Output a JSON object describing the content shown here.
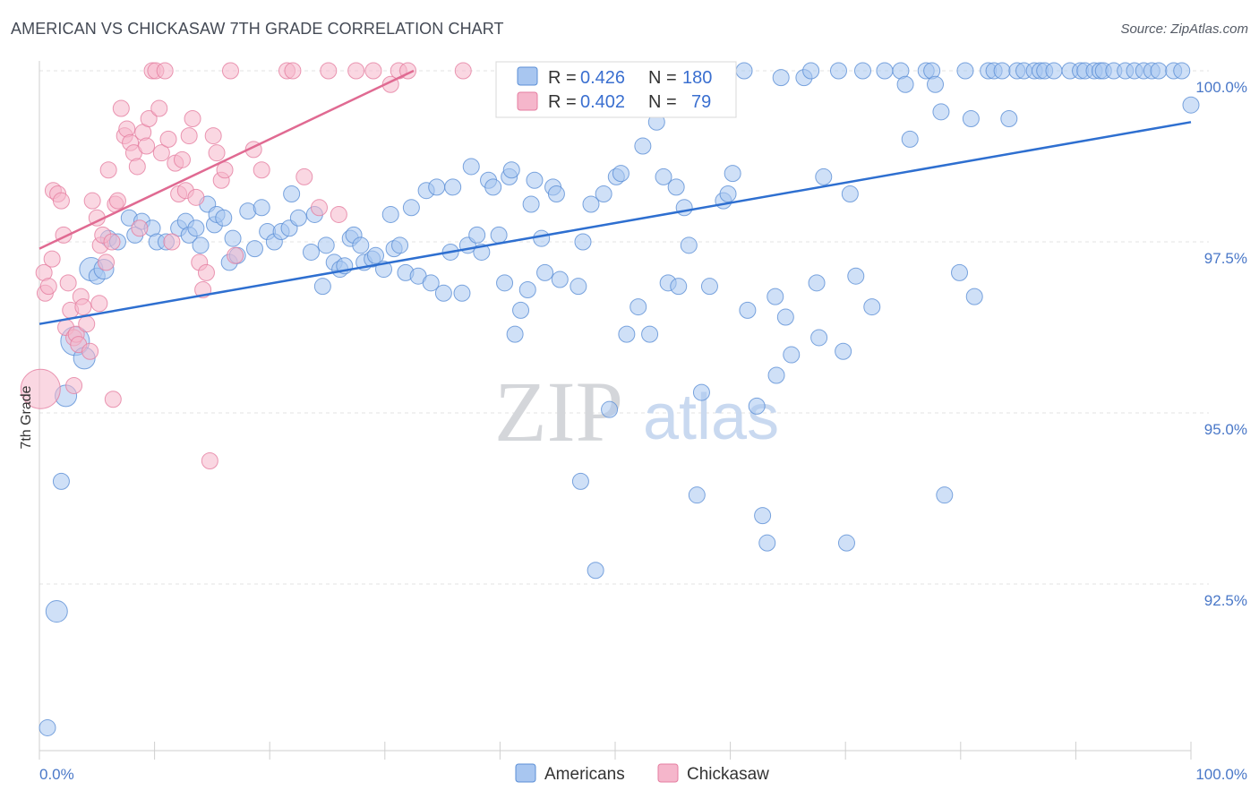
{
  "title": "AMERICAN VS CHICKASAW 7TH GRADE CORRELATION CHART",
  "source": "Source: ZipAtlas.com",
  "watermark": {
    "zip": "ZIP",
    "atlas": "atlas"
  },
  "colors": {
    "americans": "#5b8fd6",
    "americans_fill": "#a8c6f0",
    "chickasaw": "#e57ea0",
    "chickasaw_fill": "#f5b6cb",
    "blue_line": "#2e6fd0",
    "pink_line": "#e06a92",
    "tick_label": "#4a78c8"
  },
  "legend": {
    "rows": [
      {
        "r_label": "R =",
        "r_value": "0.426",
        "n_label": "N =",
        "n_value": "180"
      },
      {
        "r_label": "R =",
        "r_value": "0.402",
        "n_label": "N =",
        "n_value": "79"
      }
    ]
  },
  "bottom_legend": [
    "Americans",
    "Chickasaw"
  ],
  "chart_data": {
    "type": "scatter",
    "xlabel": "",
    "ylabel": "7th Grade",
    "xlim": [
      0,
      100
    ],
    "ylim": [
      90.2,
      100.2
    ],
    "x_tick_labels": [
      "0.0%",
      "100.0%"
    ],
    "y_ticks": [
      92.5,
      95.0,
      97.5,
      100.0
    ],
    "y_tick_labels": [
      "92.5%",
      "95.0%",
      "97.5%",
      "100.0%"
    ],
    "grid": true,
    "legend_position": "top-center",
    "series": [
      {
        "name": "Americans",
        "trend": {
          "x": [
            0,
            100
          ],
          "y": [
            96.3,
            99.25
          ]
        },
        "points": [
          [
            0.7,
            90.4
          ],
          [
            1.5,
            92.1
          ],
          [
            1.9,
            94.0
          ],
          [
            2.3,
            95.25
          ],
          [
            3.1,
            96.05
          ],
          [
            3.9,
            95.8
          ],
          [
            4.5,
            97.1
          ],
          [
            5.0,
            97.0
          ],
          [
            5.6,
            97.1
          ],
          [
            6.0,
            97.55
          ],
          [
            6.8,
            97.5
          ],
          [
            7.8,
            97.85
          ],
          [
            8.3,
            97.6
          ],
          [
            8.9,
            97.8
          ],
          [
            9.8,
            97.7
          ],
          [
            10.2,
            97.5
          ],
          [
            11.0,
            97.5
          ],
          [
            12.1,
            97.7
          ],
          [
            12.7,
            97.8
          ],
          [
            13.0,
            97.6
          ],
          [
            13.6,
            97.7
          ],
          [
            14.0,
            97.45
          ],
          [
            14.6,
            98.05
          ],
          [
            15.2,
            97.75
          ],
          [
            15.4,
            97.9
          ],
          [
            16.0,
            97.85
          ],
          [
            16.5,
            97.2
          ],
          [
            16.8,
            97.55
          ],
          [
            17.2,
            97.3
          ],
          [
            18.1,
            97.95
          ],
          [
            18.7,
            97.4
          ],
          [
            19.3,
            98.0
          ],
          [
            19.8,
            97.65
          ],
          [
            20.4,
            97.5
          ],
          [
            21.0,
            97.65
          ],
          [
            21.7,
            97.7
          ],
          [
            21.9,
            98.2
          ],
          [
            22.5,
            97.85
          ],
          [
            23.6,
            97.35
          ],
          [
            23.9,
            97.9
          ],
          [
            24.6,
            96.85
          ],
          [
            24.9,
            97.45
          ],
          [
            25.6,
            97.2
          ],
          [
            26.1,
            97.1
          ],
          [
            26.5,
            97.15
          ],
          [
            27.0,
            97.55
          ],
          [
            27.3,
            97.6
          ],
          [
            27.9,
            97.45
          ],
          [
            28.2,
            97.2
          ],
          [
            28.9,
            97.25
          ],
          [
            29.2,
            97.3
          ],
          [
            29.9,
            97.1
          ],
          [
            30.5,
            97.9
          ],
          [
            30.8,
            97.4
          ],
          [
            31.3,
            97.45
          ],
          [
            31.8,
            97.05
          ],
          [
            32.3,
            98.0
          ],
          [
            32.9,
            97.0
          ],
          [
            33.6,
            98.25
          ],
          [
            34.0,
            96.9
          ],
          [
            34.5,
            98.3
          ],
          [
            35.1,
            96.75
          ],
          [
            35.7,
            97.35
          ],
          [
            35.9,
            98.3
          ],
          [
            36.7,
            96.75
          ],
          [
            37.2,
            97.45
          ],
          [
            37.5,
            98.6
          ],
          [
            38.0,
            97.6
          ],
          [
            38.4,
            97.35
          ],
          [
            39.0,
            98.4
          ],
          [
            39.4,
            98.3
          ],
          [
            39.9,
            97.6
          ],
          [
            40.4,
            96.9
          ],
          [
            40.8,
            98.45
          ],
          [
            41.0,
            98.55
          ],
          [
            41.3,
            96.15
          ],
          [
            41.8,
            96.5
          ],
          [
            42.4,
            96.8
          ],
          [
            42.7,
            98.05
          ],
          [
            43.0,
            98.4
          ],
          [
            43.6,
            97.55
          ],
          [
            43.9,
            97.05
          ],
          [
            44.6,
            98.3
          ],
          [
            44.9,
            98.2
          ],
          [
            45.2,
            96.95
          ],
          [
            46.1,
            99.7
          ],
          [
            46.8,
            96.85
          ],
          [
            47.2,
            97.5
          ],
          [
            47.9,
            98.05
          ],
          [
            48.3,
            92.7
          ],
          [
            49.0,
            98.2
          ],
          [
            49.5,
            95.05
          ],
          [
            50.1,
            98.45
          ],
          [
            50.5,
            98.5
          ],
          [
            51.0,
            96.15
          ],
          [
            51.6,
            99.95
          ],
          [
            52.0,
            96.55
          ],
          [
            52.4,
            98.9
          ],
          [
            53.0,
            96.15
          ],
          [
            53.6,
            99.25
          ],
          [
            54.2,
            98.45
          ],
          [
            54.6,
            96.9
          ],
          [
            55.3,
            98.3
          ],
          [
            55.5,
            96.85
          ],
          [
            56.0,
            98.0
          ],
          [
            56.4,
            97.45
          ],
          [
            57.1,
            93.8
          ],
          [
            57.5,
            95.3
          ],
          [
            58.2,
            96.85
          ],
          [
            59.4,
            98.1
          ],
          [
            59.8,
            98.2
          ],
          [
            60.2,
            98.5
          ],
          [
            61.2,
            100.0
          ],
          [
            61.5,
            96.5
          ],
          [
            62.3,
            95.1
          ],
          [
            62.8,
            93.5
          ],
          [
            63.2,
            93.1
          ],
          [
            63.9,
            96.7
          ],
          [
            64.4,
            99.9
          ],
          [
            64.8,
            96.4
          ],
          [
            65.3,
            95.85
          ],
          [
            66.4,
            99.9
          ],
          [
            67.0,
            100.0
          ],
          [
            67.5,
            96.9
          ],
          [
            67.7,
            96.1
          ],
          [
            68.1,
            98.45
          ],
          [
            69.4,
            100.0
          ],
          [
            69.8,
            95.9
          ],
          [
            70.1,
            93.1
          ],
          [
            70.4,
            98.2
          ],
          [
            70.9,
            97.0
          ],
          [
            71.5,
            100.0
          ],
          [
            72.3,
            96.55
          ],
          [
            73.4,
            100.0
          ],
          [
            74.8,
            100.0
          ],
          [
            75.2,
            99.8
          ],
          [
            75.6,
            99.0
          ],
          [
            77.0,
            100.0
          ],
          [
            77.5,
            100.0
          ],
          [
            77.8,
            99.8
          ],
          [
            78.3,
            99.4
          ],
          [
            78.6,
            93.8
          ],
          [
            79.9,
            97.05
          ],
          [
            80.4,
            100.0
          ],
          [
            80.9,
            99.3
          ],
          [
            81.2,
            96.7
          ],
          [
            82.4,
            100.0
          ],
          [
            82.9,
            100.0
          ],
          [
            83.6,
            100.0
          ],
          [
            84.2,
            99.3
          ],
          [
            84.9,
            100.0
          ],
          [
            85.5,
            100.0
          ],
          [
            86.4,
            100.0
          ],
          [
            86.9,
            100.0
          ],
          [
            87.3,
            100.0
          ],
          [
            88.1,
            100.0
          ],
          [
            89.5,
            100.0
          ],
          [
            90.4,
            100.0
          ],
          [
            90.8,
            100.0
          ],
          [
            91.6,
            100.0
          ],
          [
            92.1,
            100.0
          ],
          [
            92.4,
            100.0
          ],
          [
            93.3,
            100.0
          ],
          [
            94.3,
            100.0
          ],
          [
            95.1,
            100.0
          ],
          [
            95.9,
            100.0
          ],
          [
            96.6,
            100.0
          ],
          [
            97.2,
            100.0
          ],
          [
            98.5,
            100.0
          ],
          [
            99.2,
            100.0
          ],
          [
            100.0,
            99.5
          ],
          [
            64.0,
            95.55
          ],
          [
            47.0,
            94.0
          ]
        ]
      },
      {
        "name": "Chickasaw",
        "trend": {
          "x": [
            0,
            32.5
          ],
          "y": [
            97.4,
            100.0
          ]
        },
        "points": [
          [
            0.1,
            95.35
          ],
          [
            0.4,
            97.05
          ],
          [
            0.5,
            96.75
          ],
          [
            0.8,
            96.85
          ],
          [
            1.1,
            97.25
          ],
          [
            1.2,
            98.25
          ],
          [
            1.6,
            98.2
          ],
          [
            1.9,
            98.1
          ],
          [
            2.1,
            97.6
          ],
          [
            2.3,
            96.25
          ],
          [
            2.5,
            96.9
          ],
          [
            2.7,
            96.5
          ],
          [
            3.0,
            96.1
          ],
          [
            3.2,
            96.15
          ],
          [
            3.4,
            96.0
          ],
          [
            3.6,
            96.7
          ],
          [
            3.8,
            96.55
          ],
          [
            4.1,
            96.3
          ],
          [
            4.4,
            95.9
          ],
          [
            4.6,
            98.1
          ],
          [
            5.0,
            97.85
          ],
          [
            5.3,
            97.45
          ],
          [
            5.5,
            97.6
          ],
          [
            5.8,
            97.2
          ],
          [
            6.0,
            98.55
          ],
          [
            6.3,
            97.5
          ],
          [
            6.6,
            98.05
          ],
          [
            6.8,
            98.1
          ],
          [
            7.1,
            99.45
          ],
          [
            7.4,
            99.05
          ],
          [
            7.6,
            99.15
          ],
          [
            7.9,
            98.95
          ],
          [
            8.2,
            98.8
          ],
          [
            8.5,
            98.6
          ],
          [
            8.7,
            97.7
          ],
          [
            9.0,
            99.1
          ],
          [
            9.3,
            98.9
          ],
          [
            9.5,
            99.3
          ],
          [
            9.8,
            100.0
          ],
          [
            10.1,
            100.0
          ],
          [
            10.4,
            99.45
          ],
          [
            10.6,
            98.8
          ],
          [
            10.9,
            100.0
          ],
          [
            11.2,
            99.0
          ],
          [
            11.5,
            97.5
          ],
          [
            11.8,
            98.65
          ],
          [
            12.1,
            98.2
          ],
          [
            12.4,
            98.7
          ],
          [
            12.7,
            98.25
          ],
          [
            13.0,
            99.05
          ],
          [
            13.3,
            99.3
          ],
          [
            13.6,
            98.15
          ],
          [
            13.9,
            97.2
          ],
          [
            14.2,
            96.8
          ],
          [
            14.5,
            97.05
          ],
          [
            14.8,
            94.3
          ],
          [
            15.1,
            99.05
          ],
          [
            15.4,
            98.8
          ],
          [
            15.8,
            98.4
          ],
          [
            16.1,
            98.55
          ],
          [
            16.6,
            100.0
          ],
          [
            17.0,
            97.3
          ],
          [
            18.6,
            98.85
          ],
          [
            19.3,
            98.55
          ],
          [
            21.5,
            100.0
          ],
          [
            22.0,
            100.0
          ],
          [
            23.0,
            98.45
          ],
          [
            24.3,
            98.0
          ],
          [
            25.1,
            100.0
          ],
          [
            26.0,
            97.9
          ],
          [
            27.5,
            100.0
          ],
          [
            29.0,
            100.0
          ],
          [
            30.5,
            99.8
          ],
          [
            31.2,
            100.0
          ],
          [
            32.0,
            100.0
          ],
          [
            36.8,
            100.0
          ],
          [
            5.2,
            96.6
          ],
          [
            6.4,
            95.2
          ],
          [
            3.0,
            95.4
          ]
        ]
      }
    ]
  }
}
